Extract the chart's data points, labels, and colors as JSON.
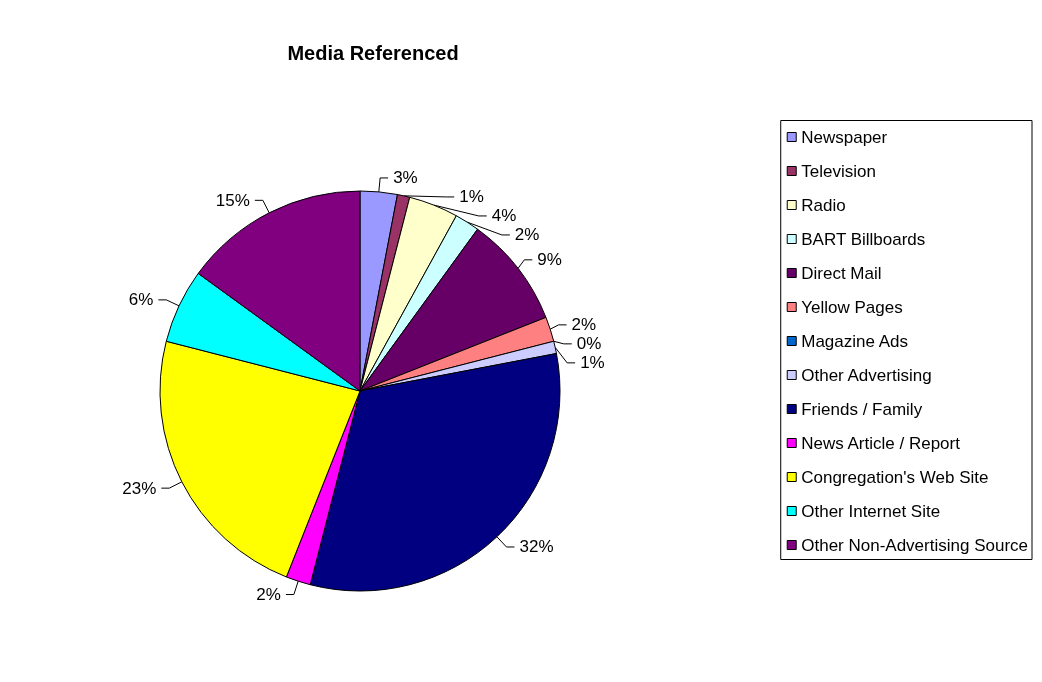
{
  "chart_data": {
    "type": "pie",
    "title": "Media Referenced",
    "categories": [
      "Newspaper",
      "Television",
      "Radio",
      "BART Billboards",
      "Direct Mail",
      "Yellow Pages",
      "Magazine Ads",
      "Other Advertising",
      "Friends / Family",
      "News Article / Report",
      "Congregation's Web Site",
      "Other Internet Site",
      "Other Non-Advertising Source"
    ],
    "values": [
      3,
      1,
      4,
      2,
      9,
      2,
      0,
      1,
      32,
      2,
      23,
      6,
      15
    ],
    "value_labels": [
      "3%",
      "1%",
      "4%",
      "2%",
      "9%",
      "2%",
      "0%",
      "1%",
      "32%",
      "2%",
      "23%",
      "6%",
      "15%"
    ],
    "colors": [
      "#9999ff",
      "#993366",
      "#ffffcc",
      "#ccffff",
      "#660066",
      "#ff8080",
      "#0066cc",
      "#ccccff",
      "#000080",
      "#ff00ff",
      "#ffff00",
      "#00ffff",
      "#800080"
    ],
    "legend": "right"
  }
}
